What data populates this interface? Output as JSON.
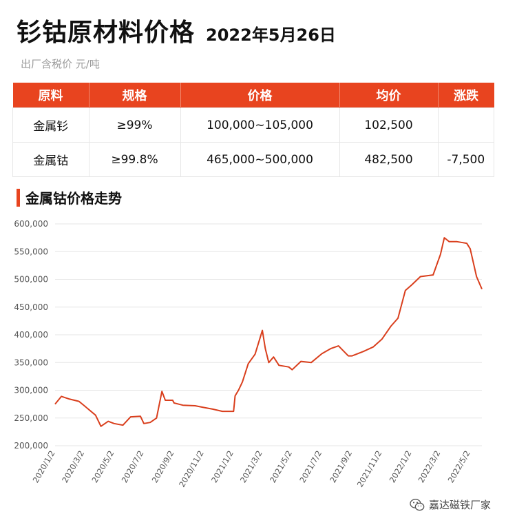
{
  "header": {
    "title": "钐钴原材料价格",
    "date": "2022年5月26日",
    "unit": "出厂含税价 元/吨"
  },
  "table": {
    "headers": [
      "原料",
      "规格",
      "价格",
      "均价",
      "涨跌"
    ],
    "rows": [
      [
        "金属钐",
        "≥99%",
        "100,000~105,000",
        "102,500",
        ""
      ],
      [
        "金属钴",
        "≥99.8%",
        "465,000~500,000",
        "482,500",
        "-7,500"
      ]
    ]
  },
  "section": {
    "title": "金属钴价格走势"
  },
  "colors": {
    "accent": "#e8441f",
    "line": "#d93e1c",
    "down": "#4fc21a"
  },
  "footer": {
    "brand": "嘉达磁铁厂家",
    "icon": "wechat-icon"
  },
  "chart_data": {
    "type": "line",
    "title": "",
    "xlabel": "",
    "ylabel": "",
    "ylim": [
      200000,
      600000
    ],
    "yticks": [
      200000,
      250000,
      300000,
      350000,
      400000,
      450000,
      500000,
      550000,
      600000
    ],
    "ytick_labels": [
      "200,000",
      "250,000",
      "300,000",
      "350,000",
      "400,000",
      "450,000",
      "500,000",
      "550,000",
      "600,000"
    ],
    "xlim": [
      "2020-01-02",
      "2022-05-26"
    ],
    "xticks": [
      "2020-01-02",
      "2020-03-02",
      "2020-05-02",
      "2020-07-02",
      "2020-09-02",
      "2020-11-02",
      "2021-01-02",
      "2021-03-02",
      "2021-05-02",
      "2021-07-02",
      "2021-09-02",
      "2021-11-02",
      "2022-01-02",
      "2022-03-02",
      "2022-05-02"
    ],
    "xtick_labels": [
      "2020/1/2",
      "2020/3/2",
      "2020/5/2",
      "2020/7/2",
      "2020/9/2",
      "2020/11/2",
      "2021/1/2",
      "2021/3/2",
      "2021/5/2",
      "2021/7/2",
      "2021/9/2",
      "2021/11/2",
      "2022/1/2",
      "2022/3/2",
      "2022/5/2"
    ],
    "grid": true,
    "series": [
      {
        "points": [
          [
            "2020-01-02",
            275000
          ],
          [
            "2020-01-15",
            289000
          ],
          [
            "2020-02-01",
            284000
          ],
          [
            "2020-02-20",
            280000
          ],
          [
            "2020-03-02",
            272000
          ],
          [
            "2020-03-25",
            255000
          ],
          [
            "2020-04-05",
            235000
          ],
          [
            "2020-04-20",
            244000
          ],
          [
            "2020-05-02",
            240000
          ],
          [
            "2020-05-20",
            237000
          ],
          [
            "2020-06-05",
            252000
          ],
          [
            "2020-06-25",
            253000
          ],
          [
            "2020-07-02",
            240000
          ],
          [
            "2020-07-15",
            242000
          ],
          [
            "2020-07-28",
            250000
          ],
          [
            "2020-08-08",
            298000
          ],
          [
            "2020-08-15",
            282000
          ],
          [
            "2020-08-30",
            282000
          ],
          [
            "2020-09-02",
            277000
          ],
          [
            "2020-09-20",
            273000
          ],
          [
            "2020-10-15",
            272000
          ],
          [
            "2020-11-02",
            269000
          ],
          [
            "2020-11-20",
            266000
          ],
          [
            "2020-12-10",
            262000
          ],
          [
            "2021-01-02",
            262000
          ],
          [
            "2021-01-05",
            290000
          ],
          [
            "2021-01-12",
            300000
          ],
          [
            "2021-01-20",
            315000
          ],
          [
            "2021-02-01",
            348000
          ],
          [
            "2021-02-15",
            365000
          ],
          [
            "2021-03-02",
            408000
          ],
          [
            "2021-03-08",
            375000
          ],
          [
            "2021-03-15",
            350000
          ],
          [
            "2021-03-25",
            360000
          ],
          [
            "2021-04-05",
            345000
          ],
          [
            "2021-04-25",
            342000
          ],
          [
            "2021-05-02",
            337000
          ],
          [
            "2021-05-20",
            352000
          ],
          [
            "2021-06-10",
            350000
          ],
          [
            "2021-07-02",
            366000
          ],
          [
            "2021-07-20",
            375000
          ],
          [
            "2021-08-05",
            380000
          ],
          [
            "2021-08-25",
            362000
          ],
          [
            "2021-09-02",
            362000
          ],
          [
            "2021-09-25",
            370000
          ],
          [
            "2021-10-15",
            378000
          ],
          [
            "2021-11-02",
            392000
          ],
          [
            "2021-11-20",
            415000
          ],
          [
            "2021-12-05",
            430000
          ],
          [
            "2021-12-20",
            480000
          ],
          [
            "2022-01-02",
            490000
          ],
          [
            "2022-01-20",
            505000
          ],
          [
            "2022-02-15",
            508000
          ],
          [
            "2022-03-02",
            545000
          ],
          [
            "2022-03-10",
            575000
          ],
          [
            "2022-03-20",
            568000
          ],
          [
            "2022-04-05",
            568000
          ],
          [
            "2022-04-25",
            565000
          ],
          [
            "2022-05-02",
            555000
          ],
          [
            "2022-05-15",
            505000
          ],
          [
            "2022-05-26",
            482500
          ]
        ]
      }
    ]
  }
}
